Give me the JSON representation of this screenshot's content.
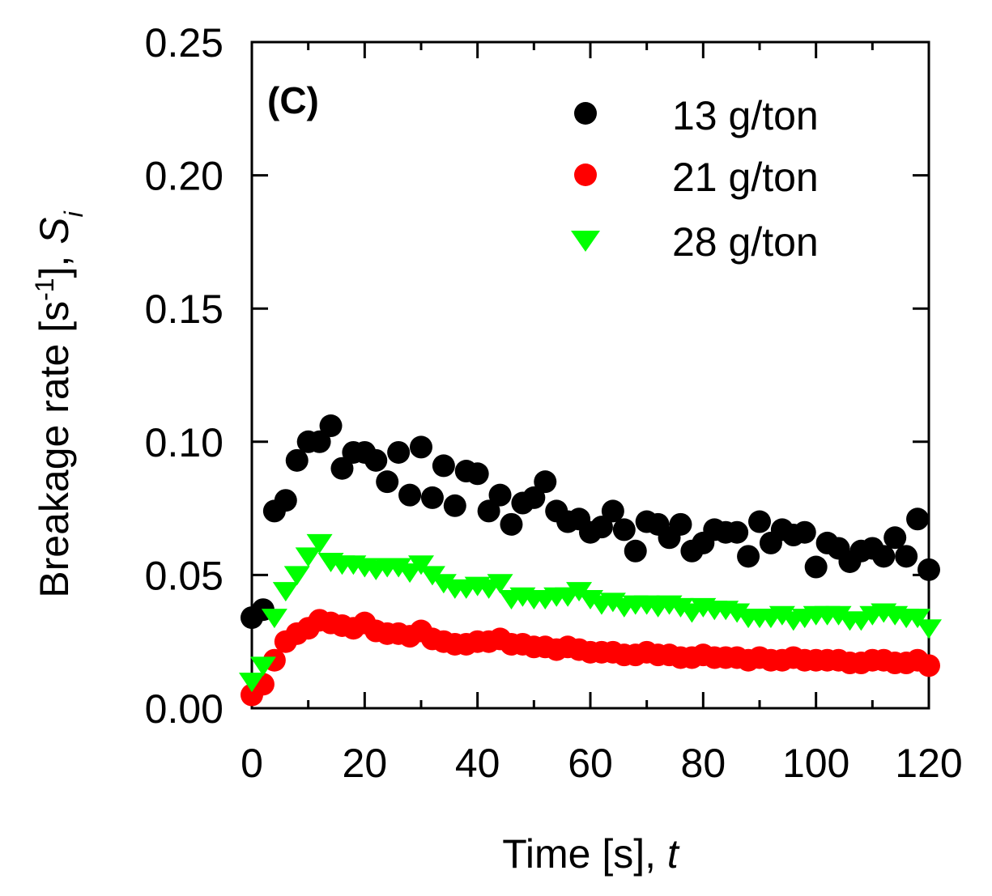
{
  "chart_data": {
    "type": "scatter",
    "panel_label": "(C)",
    "xlabel": "Time [s], ",
    "xlabel_var": "t",
    "ylabel_main": "Breakage rate [s",
    "ylabel_sup": "-1",
    "ylabel_mid": "], ",
    "ylabel_var": "S",
    "ylabel_sub": "i",
    "xlim": [
      0,
      120
    ],
    "ylim": [
      0,
      0.25
    ],
    "xticks": [
      0,
      20,
      40,
      60,
      80,
      100,
      120
    ],
    "xtick_labels": [
      "0",
      "20",
      "40",
      "60",
      "80",
      "100",
      "120"
    ],
    "yticks": [
      0,
      0.05,
      0.1,
      0.15,
      0.2,
      0.25
    ],
    "ytick_labels": [
      "0.00",
      "0.05",
      "0.10",
      "0.15",
      "0.20",
      "0.25"
    ],
    "grid": false,
    "legend_position": "top-right",
    "x": [
      0,
      2,
      4,
      6,
      8,
      10,
      12,
      14,
      16,
      18,
      20,
      22,
      24,
      26,
      28,
      30,
      32,
      34,
      36,
      38,
      40,
      42,
      44,
      46,
      48,
      50,
      52,
      54,
      56,
      58,
      60,
      62,
      64,
      66,
      68,
      70,
      72,
      74,
      76,
      78,
      80,
      82,
      84,
      86,
      88,
      90,
      92,
      94,
      96,
      98,
      100,
      102,
      104,
      106,
      108,
      110,
      112,
      114,
      116,
      118,
      120
    ],
    "series": [
      {
        "name": "13 g/ton",
        "color": "#000000",
        "marker": "circle",
        "values": [
          0.034,
          0.037,
          0.074,
          0.078,
          0.093,
          0.1,
          0.1,
          0.106,
          0.09,
          0.096,
          0.096,
          0.093,
          0.085,
          0.096,
          0.08,
          0.098,
          0.079,
          0.091,
          0.076,
          0.089,
          0.088,
          0.074,
          0.08,
          0.069,
          0.077,
          0.079,
          0.085,
          0.074,
          0.07,
          0.071,
          0.066,
          0.068,
          0.074,
          0.067,
          0.059,
          0.07,
          0.069,
          0.064,
          0.069,
          0.059,
          0.062,
          0.067,
          0.066,
          0.066,
          0.057,
          0.07,
          0.062,
          0.067,
          0.065,
          0.066,
          0.053,
          0.062,
          0.06,
          0.055,
          0.059,
          0.06,
          0.057,
          0.064,
          0.057,
          0.071,
          0.052
        ]
      },
      {
        "name": "21 g/ton",
        "color": "#ff0000",
        "marker": "circle",
        "values": [
          0.005,
          0.009,
          0.018,
          0.025,
          0.028,
          0.03,
          0.033,
          0.032,
          0.031,
          0.03,
          0.032,
          0.029,
          0.028,
          0.028,
          0.027,
          0.029,
          0.026,
          0.025,
          0.024,
          0.024,
          0.025,
          0.025,
          0.026,
          0.024,
          0.024,
          0.023,
          0.023,
          0.022,
          0.023,
          0.022,
          0.021,
          0.021,
          0.021,
          0.02,
          0.02,
          0.021,
          0.02,
          0.02,
          0.019,
          0.019,
          0.02,
          0.019,
          0.019,
          0.019,
          0.018,
          0.019,
          0.018,
          0.018,
          0.019,
          0.018,
          0.018,
          0.018,
          0.018,
          0.017,
          0.017,
          0.018,
          0.018,
          0.017,
          0.017,
          0.018,
          0.016
        ]
      },
      {
        "name": "28 g/ton",
        "color": "#00ff00",
        "marker": "triangle-down",
        "values": [
          0.01,
          0.016,
          0.034,
          0.044,
          0.05,
          0.057,
          0.062,
          0.055,
          0.054,
          0.054,
          0.053,
          0.052,
          0.053,
          0.053,
          0.051,
          0.054,
          0.05,
          0.047,
          0.045,
          0.045,
          0.046,
          0.045,
          0.047,
          0.041,
          0.042,
          0.041,
          0.041,
          0.042,
          0.042,
          0.044,
          0.041,
          0.039,
          0.04,
          0.038,
          0.039,
          0.039,
          0.038,
          0.039,
          0.038,
          0.036,
          0.038,
          0.037,
          0.037,
          0.036,
          0.034,
          0.034,
          0.034,
          0.035,
          0.033,
          0.034,
          0.035,
          0.035,
          0.035,
          0.033,
          0.033,
          0.035,
          0.036,
          0.035,
          0.034,
          0.034,
          0.03
        ]
      }
    ]
  }
}
